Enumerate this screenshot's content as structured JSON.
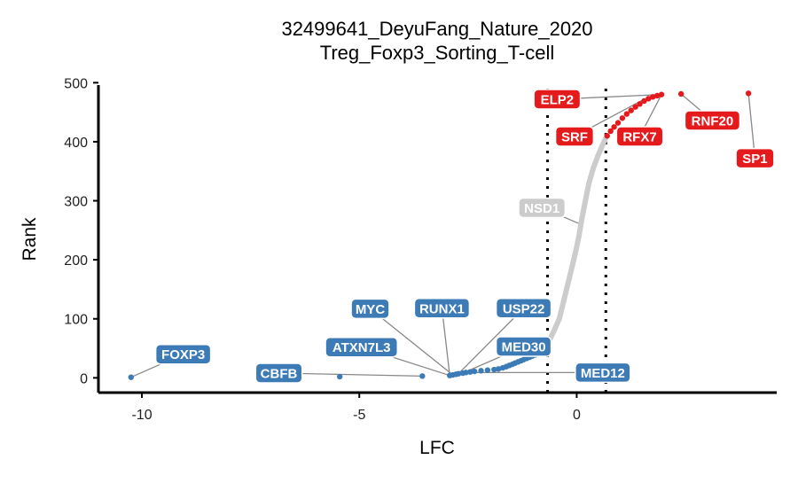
{
  "chart_data": {
    "type": "scatter",
    "title": "32499641_DeyuFang_Nature_2020",
    "subtitle": "Treg_Foxp3_Sorting_T-cell",
    "xlabel": "LFC",
    "ylabel": "Rank",
    "xlim": [
      -11,
      4.6
    ],
    "ylim": [
      -25,
      505
    ],
    "xticks": [
      {
        "value": -10,
        "label": "-10"
      },
      {
        "value": -5,
        "label": "-5"
      },
      {
        "value": 0,
        "label": "0"
      }
    ],
    "yticks": [
      {
        "value": 0,
        "label": "0"
      },
      {
        "value": 100,
        "label": "100"
      },
      {
        "value": 200,
        "label": "200"
      },
      {
        "value": 300,
        "label": "300"
      },
      {
        "value": 400,
        "label": "400"
      },
      {
        "value": 500,
        "label": "500"
      }
    ],
    "thresholds": [
      -0.67,
      0.67
    ],
    "grid": false,
    "colors": {
      "down": "#3C7BB5",
      "neutral": "#CCCCCC",
      "up": "#E41A1C",
      "label_leader": "#888888"
    },
    "series": [
      {
        "group": "down",
        "color": "#3C7BB5",
        "points": [
          {
            "x": -10.25,
            "y": 1
          },
          {
            "x": -5.45,
            "y": 2
          },
          {
            "x": -3.55,
            "y": 3
          },
          {
            "x": -2.92,
            "y": 4
          },
          {
            "x": -2.85,
            "y": 5
          },
          {
            "x": -2.78,
            "y": 6
          },
          {
            "x": -2.72,
            "y": 7
          },
          {
            "x": -2.62,
            "y": 8
          },
          {
            "x": -2.55,
            "y": 9
          },
          {
            "x": -2.45,
            "y": 10
          },
          {
            "x": -2.35,
            "y": 11
          },
          {
            "x": -2.2,
            "y": 12
          },
          {
            "x": -2.05,
            "y": 13
          },
          {
            "x": -1.9,
            "y": 14
          },
          {
            "x": -1.8,
            "y": 15
          },
          {
            "x": -1.7,
            "y": 17
          },
          {
            "x": -1.62,
            "y": 19
          },
          {
            "x": -1.55,
            "y": 21
          },
          {
            "x": -1.48,
            "y": 23
          },
          {
            "x": -1.42,
            "y": 25
          },
          {
            "x": -1.35,
            "y": 27
          },
          {
            "x": -1.28,
            "y": 29
          },
          {
            "x": -1.22,
            "y": 31
          },
          {
            "x": -1.15,
            "y": 33
          },
          {
            "x": -1.08,
            "y": 35
          },
          {
            "x": -1.02,
            "y": 37
          },
          {
            "x": -0.95,
            "y": 39
          },
          {
            "x": -0.9,
            "y": 41
          },
          {
            "x": -0.85,
            "y": 43
          },
          {
            "x": -0.8,
            "y": 45
          },
          {
            "x": -0.75,
            "y": 47
          }
        ]
      },
      {
        "group": "neutral",
        "color": "#CCCCCC",
        "points": [
          {
            "x": -0.65,
            "y": 60
          },
          {
            "x": -0.52,
            "y": 80
          },
          {
            "x": -0.4,
            "y": 100
          },
          {
            "x": -0.3,
            "y": 130
          },
          {
            "x": -0.2,
            "y": 160
          },
          {
            "x": -0.1,
            "y": 190
          },
          {
            "x": -0.02,
            "y": 215
          },
          {
            "x": 0.05,
            "y": 240
          },
          {
            "x": 0.12,
            "y": 270
          },
          {
            "x": 0.2,
            "y": 300
          },
          {
            "x": 0.28,
            "y": 330
          },
          {
            "x": 0.38,
            "y": 355
          },
          {
            "x": 0.48,
            "y": 375
          },
          {
            "x": 0.58,
            "y": 392
          },
          {
            "x": 0.66,
            "y": 405
          }
        ]
      },
      {
        "group": "up",
        "color": "#E41A1C",
        "points": [
          {
            "x": 0.7,
            "y": 410
          },
          {
            "x": 0.78,
            "y": 418
          },
          {
            "x": 0.86,
            "y": 425
          },
          {
            "x": 0.95,
            "y": 432
          },
          {
            "x": 1.05,
            "y": 440
          },
          {
            "x": 1.15,
            "y": 447
          },
          {
            "x": 1.25,
            "y": 453
          },
          {
            "x": 1.35,
            "y": 459
          },
          {
            "x": 1.45,
            "y": 464
          },
          {
            "x": 1.55,
            "y": 469
          },
          {
            "x": 1.65,
            "y": 473
          },
          {
            "x": 1.75,
            "y": 476
          },
          {
            "x": 1.85,
            "y": 478
          },
          {
            "x": 1.95,
            "y": 480
          },
          {
            "x": 2.4,
            "y": 481
          },
          {
            "x": 3.95,
            "y": 482
          }
        ]
      }
    ],
    "labels": [
      {
        "text": "FOXP3",
        "group": "down",
        "x": -10.25,
        "y": 1,
        "lx": -9.05,
        "ly": 40
      },
      {
        "text": "CBFB",
        "group": "down",
        "x": -3.55,
        "y": 3,
        "lx": -6.85,
        "ly": 8
      },
      {
        "text": "ATXN7L3",
        "group": "down",
        "x": -2.92,
        "y": 4,
        "lx": -4.95,
        "ly": 52
      },
      {
        "text": "MYC",
        "group": "down",
        "x": -2.85,
        "y": 5,
        "lx": -4.75,
        "ly": 117
      },
      {
        "text": "RUNX1",
        "group": "down",
        "x": -2.92,
        "y": 4,
        "lx": -3.1,
        "ly": 118
      },
      {
        "text": "USP22",
        "group": "down",
        "x": -2.72,
        "y": 7,
        "lx": -1.22,
        "ly": 118
      },
      {
        "text": "MED30",
        "group": "down",
        "x": -2.62,
        "y": 8,
        "lx": -1.22,
        "ly": 53
      },
      {
        "text": "MED12",
        "group": "down",
        "x": -2.55,
        "y": 9,
        "lx": 0.6,
        "ly": 9
      },
      {
        "text": "NSD1",
        "group": "neutral",
        "x": 0.1,
        "y": 260,
        "lx": -0.8,
        "ly": 288
      },
      {
        "text": "ELP2",
        "group": "up",
        "x": 1.95,
        "y": 480,
        "lx": -0.45,
        "ly": 472
      },
      {
        "text": "SRF",
        "group": "up",
        "x": 1.5,
        "y": 470,
        "lx": -0.05,
        "ly": 409
      },
      {
        "text": "RFX7",
        "group": "up",
        "x": 1.95,
        "y": 480,
        "lx": 1.45,
        "ly": 409
      },
      {
        "text": "RNF20",
        "group": "up",
        "x": 2.4,
        "y": 481,
        "lx": 3.12,
        "ly": 436
      },
      {
        "text": "SP1",
        "group": "up",
        "x": 3.95,
        "y": 482,
        "lx": 4.1,
        "ly": 372
      }
    ]
  }
}
